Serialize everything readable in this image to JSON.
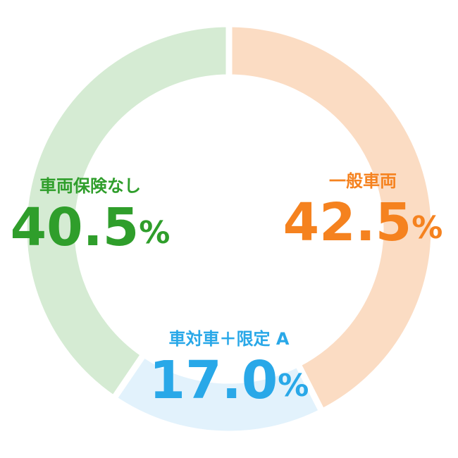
{
  "chart_data": {
    "type": "donut",
    "categories": [
      "一般車両",
      "車対車＋限定 A",
      "車両保険なし"
    ],
    "values": [
      42.5,
      17.0,
      40.5
    ],
    "value_labels": [
      "42.5%",
      "17.0%",
      "40.5%"
    ],
    "colors": [
      "#fbdcc3",
      "#e2f2fc",
      "#d5ebd3"
    ],
    "label_colors": [
      "#f5821f",
      "#29a8e8",
      "#2f9e2b"
    ]
  }
}
